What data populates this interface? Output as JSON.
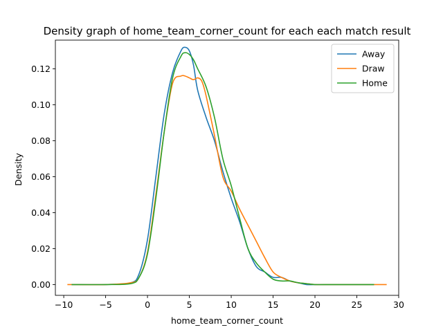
{
  "chart_data": {
    "type": "line",
    "title": "Density graph of home_team_corner_count for each each match result",
    "xlabel": "home_team_corner_count",
    "ylabel": "Density",
    "xlim": [
      -11,
      30
    ],
    "ylim": [
      -0.006,
      0.136
    ],
    "xticks": [
      -10,
      -5,
      0,
      5,
      10,
      15,
      20,
      25,
      30
    ],
    "yticks": [
      0.0,
      0.02,
      0.04,
      0.06,
      0.08,
      0.1,
      0.12
    ],
    "legend_position": "top-right",
    "grid": false,
    "series": [
      {
        "name": "Away",
        "color": "#1f77b4",
        "x": [
          -9,
          -5,
          -2,
          -1,
          0,
          1,
          2,
          3,
          4,
          4.5,
          5,
          5.5,
          6,
          7,
          8,
          9,
          10,
          11,
          12,
          13,
          14,
          15,
          16,
          17,
          18,
          19,
          20,
          22,
          25,
          27
        ],
        "y": [
          0.0,
          0.0,
          0.001,
          0.006,
          0.025,
          0.06,
          0.095,
          0.118,
          0.13,
          0.132,
          0.13,
          0.122,
          0.108,
          0.093,
          0.08,
          0.063,
          0.048,
          0.035,
          0.02,
          0.01,
          0.007,
          0.004,
          0.004,
          0.002,
          0.001,
          0.0,
          0.0,
          0.0,
          0.0,
          0.0
        ]
      },
      {
        "name": "Draw",
        "color": "#ff7f0e",
        "x": [
          -9.5,
          -5,
          -2,
          -1,
          0,
          1,
          2,
          3,
          4,
          4.5,
          5,
          5.5,
          6,
          6.5,
          7,
          8,
          9,
          10,
          11,
          12,
          13,
          14,
          15,
          16,
          17,
          18,
          19,
          20,
          22,
          25,
          28.5
        ],
        "y": [
          0.0,
          0.0,
          0.001,
          0.004,
          0.018,
          0.05,
          0.085,
          0.112,
          0.116,
          0.116,
          0.115,
          0.114,
          0.115,
          0.113,
          0.105,
          0.083,
          0.06,
          0.052,
          0.042,
          0.033,
          0.024,
          0.015,
          0.007,
          0.004,
          0.002,
          0.001,
          0.0005,
          0.0,
          0.0,
          0.0,
          0.0
        ]
      },
      {
        "name": "Home",
        "color": "#2ca02c",
        "x": [
          -9,
          -5,
          -2,
          -1,
          0,
          1,
          2,
          3,
          4,
          4.5,
          5,
          5.5,
          6,
          7,
          8,
          9,
          10,
          11,
          12,
          13,
          14,
          15,
          16,
          17,
          18,
          19,
          20,
          22,
          25,
          27
        ],
        "y": [
          0.0,
          0.0,
          0.0005,
          0.004,
          0.017,
          0.048,
          0.085,
          0.115,
          0.127,
          0.129,
          0.128,
          0.125,
          0.12,
          0.11,
          0.093,
          0.07,
          0.055,
          0.037,
          0.02,
          0.012,
          0.007,
          0.003,
          0.002,
          0.002,
          0.001,
          0.0005,
          0.0,
          0.0,
          0.0,
          0.0
        ]
      }
    ]
  }
}
